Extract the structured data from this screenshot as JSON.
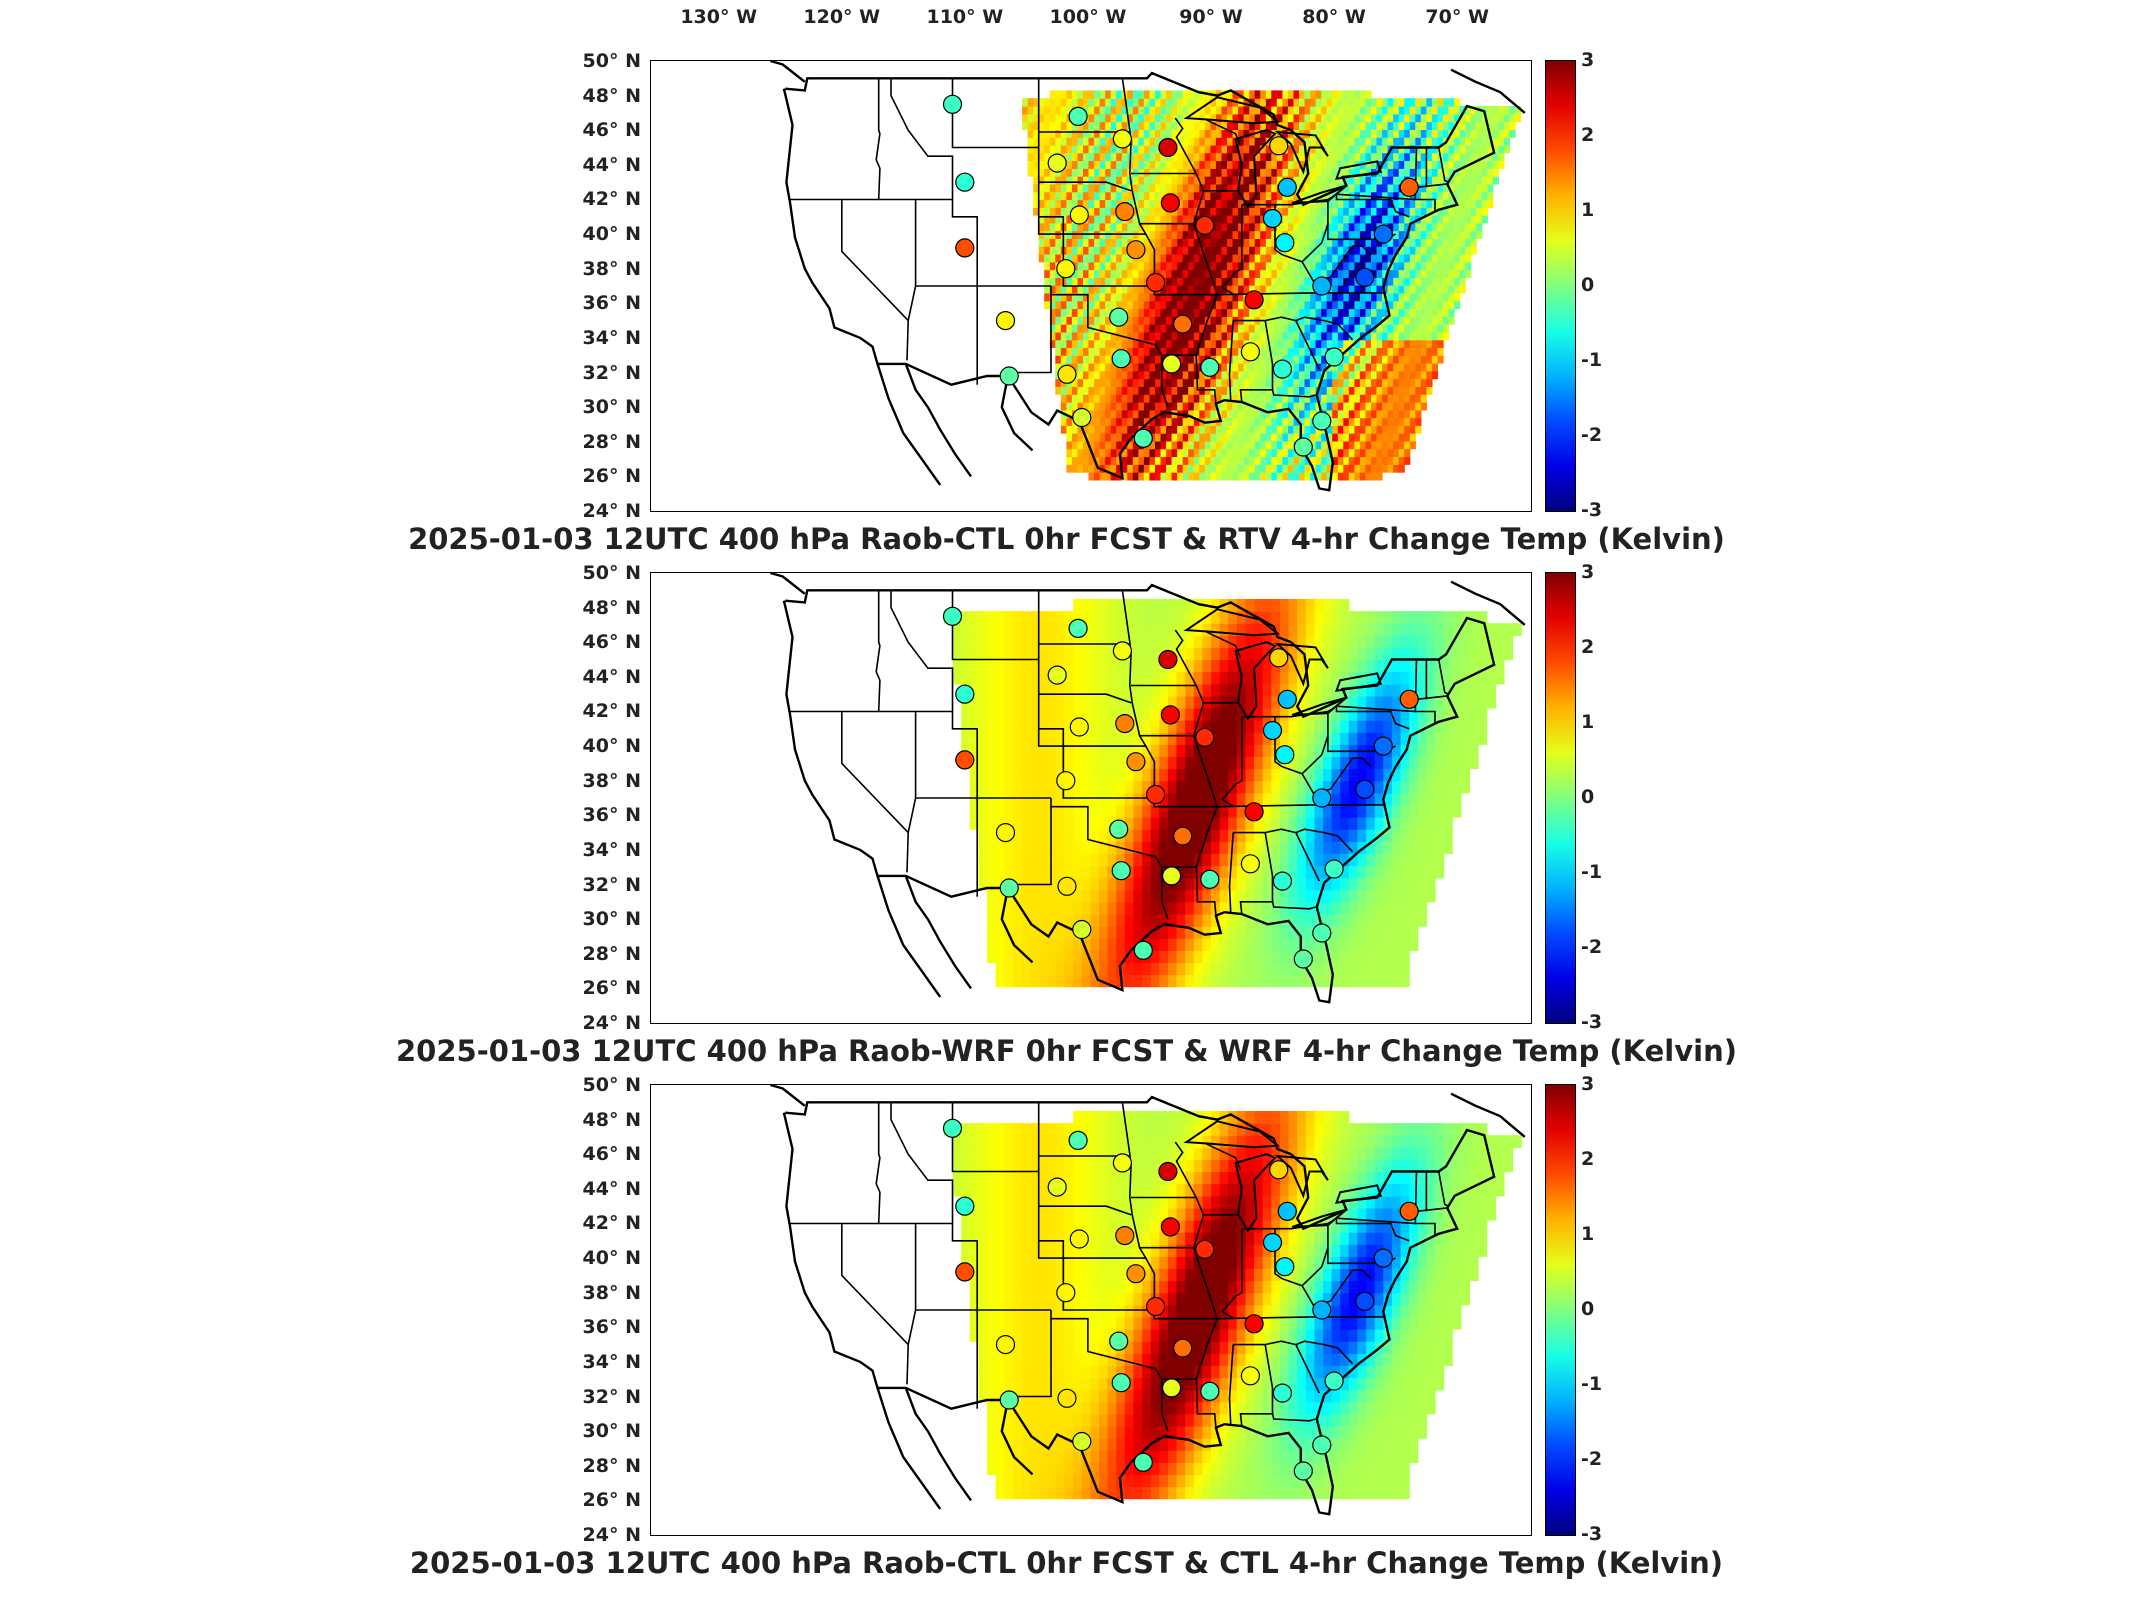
{
  "lon_labels": [
    "130° W",
    "120° W",
    "110° W",
    "100° W",
    "90° W",
    "80° W",
    "70° W"
  ],
  "lat_labels": [
    "50° N",
    "48° N",
    "46° N",
    "44° N",
    "42° N",
    "40° N",
    "38° N",
    "36° N",
    "34° N",
    "32° N",
    "30° N",
    "28° N",
    "26° N",
    "24° N"
  ],
  "colorbar": {
    "ticks": [
      "3",
      "2",
      "1",
      "0",
      "-1",
      "-2",
      "-3"
    ],
    "min": -3,
    "max": 3,
    "units": "Kelvin"
  },
  "panels": [
    {
      "caption": "2025-01-03 12UTC 400 hPa Raob-CTL 0hr FCST & RTV 4-hr Change Temp (Kelvin)",
      "field": "RTV",
      "noisy": true
    },
    {
      "caption": "2025-01-03 12UTC 400 hPa Raob-WRF 0hr FCST & WRF 4-hr Change Temp (Kelvin)",
      "field": "WRF",
      "noisy": false
    },
    {
      "caption": "2025-01-03 12UTC 400 hPa Raob-CTL 0hr FCST & CTL 4-hr Change Temp (Kelvin)",
      "field": "CTL",
      "noisy": false
    }
  ],
  "raob_stations": [
    {
      "lon": -111.0,
      "lat": 47.5,
      "value": -0.4
    },
    {
      "lon": -100.8,
      "lat": 46.8,
      "value": -0.3
    },
    {
      "lon": -97.2,
      "lat": 45.5,
      "value": 0.7
    },
    {
      "lon": -93.5,
      "lat": 45.0,
      "value": 2.5
    },
    {
      "lon": -84.5,
      "lat": 45.1,
      "value": 1.0
    },
    {
      "lon": -110.0,
      "lat": 43.0,
      "value": -0.5
    },
    {
      "lon": -102.5,
      "lat": 44.1,
      "value": 0.6
    },
    {
      "lon": -100.7,
      "lat": 41.1,
      "value": 0.8
    },
    {
      "lon": -97.0,
      "lat": 41.3,
      "value": 1.5
    },
    {
      "lon": -93.3,
      "lat": 41.8,
      "value": 2.3
    },
    {
      "lon": -90.5,
      "lat": 40.5,
      "value": 2.0
    },
    {
      "lon": -85.0,
      "lat": 40.9,
      "value": -1.0
    },
    {
      "lon": -83.8,
      "lat": 42.7,
      "value": -1.1
    },
    {
      "lon": -73.9,
      "lat": 42.7,
      "value": 1.7
    },
    {
      "lon": -110.0,
      "lat": 39.2,
      "value": 1.8
    },
    {
      "lon": -101.8,
      "lat": 38.0,
      "value": 0.8
    },
    {
      "lon": -96.1,
      "lat": 39.1,
      "value": 1.4
    },
    {
      "lon": -94.5,
      "lat": 37.2,
      "value": 2.0
    },
    {
      "lon": -86.5,
      "lat": 36.2,
      "value": 2.3
    },
    {
      "lon": -84.0,
      "lat": 39.5,
      "value": -0.8
    },
    {
      "lon": -81.0,
      "lat": 37.0,
      "value": -1.2
    },
    {
      "lon": -77.5,
      "lat": 37.5,
      "value": -1.8
    },
    {
      "lon": -76.0,
      "lat": 40.0,
      "value": -1.6
    },
    {
      "lon": -106.7,
      "lat": 35.0,
      "value": 0.8
    },
    {
      "lon": -97.5,
      "lat": 35.2,
      "value": -0.2
    },
    {
      "lon": -92.3,
      "lat": 34.8,
      "value": 1.6
    },
    {
      "lon": -86.8,
      "lat": 33.2,
      "value": 0.7
    },
    {
      "lon": -90.1,
      "lat": 32.3,
      "value": -0.3
    },
    {
      "lon": -97.3,
      "lat": 32.8,
      "value": -0.3
    },
    {
      "lon": -101.7,
      "lat": 31.9,
      "value": 0.9
    },
    {
      "lon": -106.4,
      "lat": 31.8,
      "value": -0.2
    },
    {
      "lon": -93.2,
      "lat": 32.5,
      "value": 0.6
    },
    {
      "lon": -84.2,
      "lat": 32.2,
      "value": -0.5
    },
    {
      "lon": -80.0,
      "lat": 32.9,
      "value": -0.4
    },
    {
      "lon": -100.5,
      "lat": 29.4,
      "value": 0.5
    },
    {
      "lon": -95.5,
      "lat": 28.2,
      "value": -0.3
    },
    {
      "lon": -82.5,
      "lat": 27.7,
      "value": -0.2
    },
    {
      "lon": -81.0,
      "lat": 29.2,
      "value": -0.3
    }
  ]
}
